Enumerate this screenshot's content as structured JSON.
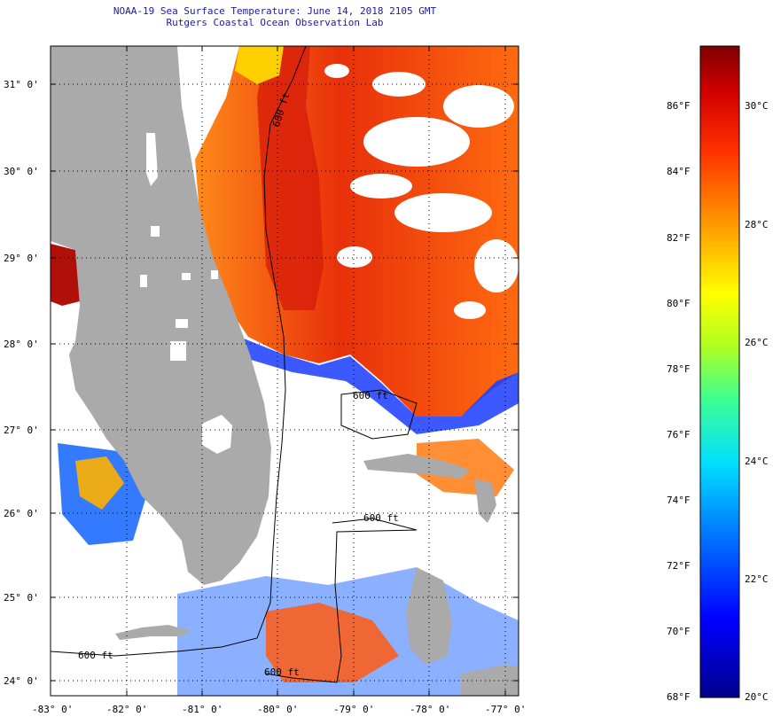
{
  "header": {
    "title_line1": "NOAA-19 Sea Surface Temperature:  June 14, 2018 2105 GMT",
    "title_line2": "Rutgers Coastal Ocean Observation Lab"
  },
  "map": {
    "lat_labels": [
      "31° 0'",
      "30° 0'",
      "29° 0'",
      "28° 0'",
      "27° 0'",
      "26° 0'",
      "25° 0'",
      "24° 0'"
    ],
    "lon_labels": [
      "-83° 0'",
      "-82° 0'",
      "-81° 0'",
      "-80° 0'",
      "-79° 0'",
      "-78° 0'",
      "-77° 0'"
    ],
    "isobath_labels": [
      "600 ft",
      "600 ft",
      "600 ft",
      "600 ft",
      "600 ft"
    ],
    "colors": {
      "land": "#aaaaaa",
      "cloud": "#ffffff",
      "grid": "#000000",
      "title": "#1a1aa8"
    }
  },
  "colorbar": {
    "f_labels": [
      "86°F",
      "84°F",
      "82°F",
      "80°F",
      "78°F",
      "76°F",
      "74°F",
      "72°F",
      "70°F",
      "68°F"
    ],
    "c_labels": [
      "30°C",
      "28°C",
      "26°C",
      "24°C",
      "22°C",
      "20°C"
    ],
    "min_c": 20,
    "max_c": 31.3
  }
}
